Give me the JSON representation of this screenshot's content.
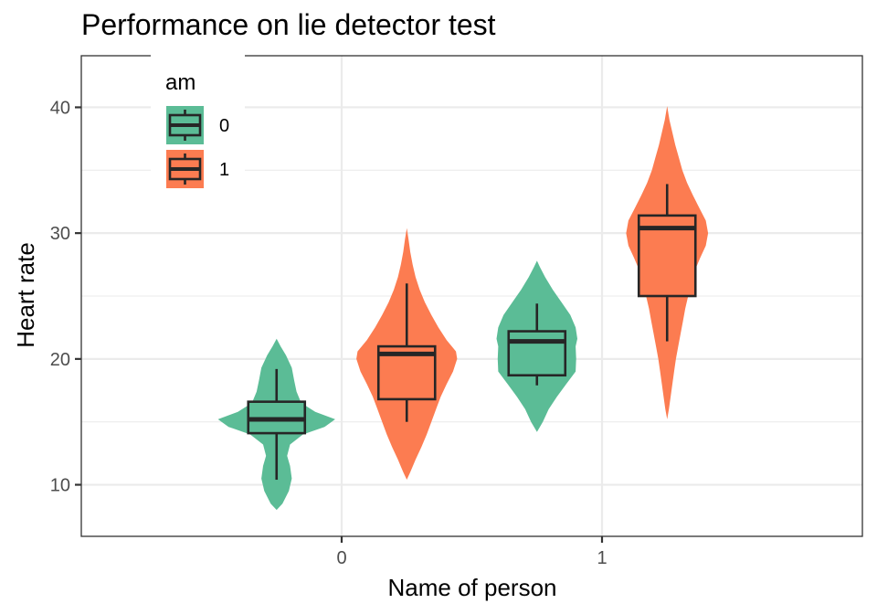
{
  "chart_data": {
    "type": "violin",
    "title": "Performance on lie detector test",
    "xlabel": "Name of person",
    "ylabel": "Heart rate",
    "categories": [
      "0",
      "1"
    ],
    "ylim": [
      5.9,
      44.1
    ],
    "yticks": [
      10,
      20,
      30,
      40
    ],
    "grid": true,
    "legend": {
      "title": "am",
      "placement": "top-left",
      "entries": [
        "0",
        "1"
      ]
    },
    "colors": {
      "0": "#5BBC96",
      "1": "#FC7C51"
    },
    "series": [
      {
        "name": "0",
        "groups": [
          {
            "category": "0",
            "box": {
              "min": 10.4,
              "q1": 14.1,
              "median": 15.2,
              "q3": 16.6,
              "max": 19.2
            },
            "violin": {
              "y": [
                8.0,
                8.5,
                9.5,
                10.5,
                11.5,
                12.3,
                13.2,
                14.0,
                14.6,
                15.2,
                15.8,
                16.5,
                17.4,
                18.3,
                19.3,
                20.3,
                21.0,
                21.6
              ],
              "width": [
                0.0,
                0.1,
                0.21,
                0.26,
                0.23,
                0.18,
                0.23,
                0.45,
                0.82,
                1.0,
                0.66,
                0.42,
                0.34,
                0.3,
                0.26,
                0.16,
                0.07,
                0.0
              ]
            }
          },
          {
            "category": "1",
            "box": {
              "min": 17.9,
              "q1": 18.7,
              "median": 21.4,
              "q3": 22.2,
              "max": 24.4
            },
            "violin": {
              "y": [
                14.2,
                15.0,
                16.0,
                17.0,
                18.0,
                19.0,
                20.0,
                21.0,
                21.6,
                22.5,
                23.5,
                24.5,
                25.5,
                26.5,
                27.3,
                27.8
              ],
              "width": [
                0.0,
                0.1,
                0.2,
                0.34,
                0.5,
                0.66,
                0.67,
                0.66,
                0.69,
                0.66,
                0.57,
                0.42,
                0.27,
                0.14,
                0.05,
                0.0
              ]
            }
          }
        ]
      },
      {
        "name": "1",
        "groups": [
          {
            "category": "0",
            "box": {
              "min": 15.0,
              "q1": 16.8,
              "median": 20.4,
              "q3": 21.0,
              "max": 26.0
            },
            "violin": {
              "y": [
                10.4,
                11.0,
                12.0,
                13.0,
                14.0,
                15.0,
                16.0,
                17.0,
                18.0,
                19.0,
                20.0,
                20.6,
                21.5,
                22.5,
                23.5,
                24.5,
                25.5,
                26.5,
                27.5,
                28.5,
                29.5,
                30.4
              ],
              "width": [
                0.0,
                0.06,
                0.15,
                0.25,
                0.34,
                0.42,
                0.5,
                0.58,
                0.68,
                0.79,
                0.86,
                0.84,
                0.68,
                0.54,
                0.42,
                0.31,
                0.22,
                0.15,
                0.1,
                0.06,
                0.03,
                0.0
              ]
            }
          },
          {
            "category": "1",
            "box": {
              "min": 21.4,
              "q1": 25.0,
              "median": 30.4,
              "q3": 31.4,
              "max": 33.9
            },
            "violin": {
              "y": [
                15.2,
                16.0,
                17.0,
                18.0,
                19.0,
                20.0,
                21.0,
                22.0,
                23.0,
                24.0,
                25.0,
                26.0,
                27.0,
                28.0,
                29.0,
                30.0,
                31.0,
                32.0,
                33.0,
                34.0,
                35.0,
                36.0,
                37.0,
                38.0,
                39.0,
                40.1
              ],
              "width": [
                0.0,
                0.03,
                0.06,
                0.09,
                0.12,
                0.15,
                0.19,
                0.23,
                0.27,
                0.31,
                0.36,
                0.41,
                0.47,
                0.56,
                0.66,
                0.7,
                0.66,
                0.55,
                0.44,
                0.34,
                0.26,
                0.2,
                0.14,
                0.09,
                0.04,
                0.0
              ]
            }
          }
        ]
      }
    ]
  }
}
